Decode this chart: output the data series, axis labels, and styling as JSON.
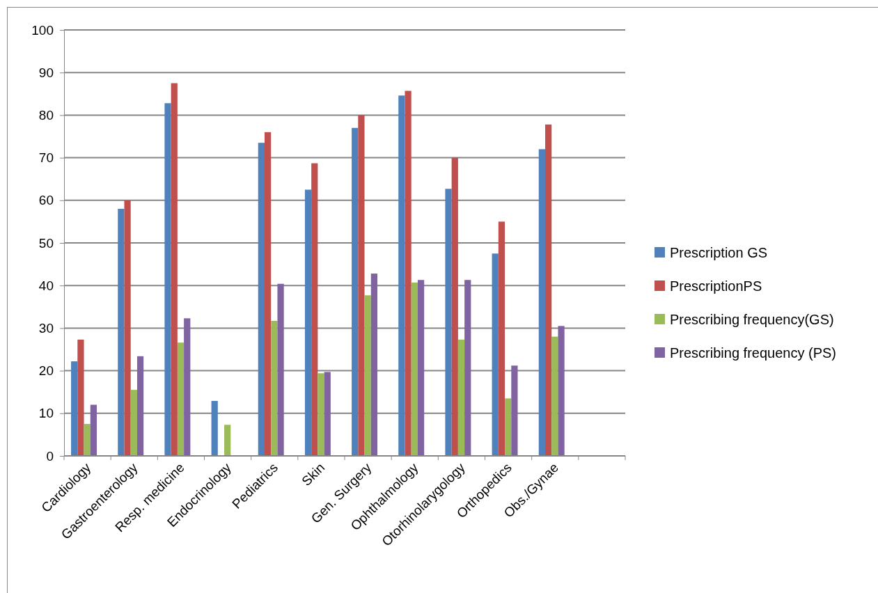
{
  "chart_data": {
    "type": "bar",
    "categories": [
      "Cardiology",
      "Gastroenterology",
      "Resp. medicine",
      "Endocrinology",
      "Pediatrics",
      "Skin",
      "Gen. Surgery",
      "Ophthalmology",
      "Otorhinolarygology",
      "Orthopedics",
      "Obs./Gynae",
      null
    ],
    "series": [
      {
        "name": "Prescription GS",
        "color": "#4f81bd",
        "values": [
          22.2,
          58,
          82.8,
          12.9,
          73.5,
          62.5,
          77,
          84.6,
          62.7,
          47.5,
          72,
          null
        ]
      },
      {
        "name": "PrescriptionPS",
        "color": "#c0504d",
        "values": [
          27.3,
          60,
          87.5,
          null,
          76,
          68.7,
          80,
          85.7,
          70,
          55,
          77.8,
          null
        ]
      },
      {
        "name": "Prescribing frequency(GS)",
        "color": "#9bbb59",
        "values": [
          7.5,
          15.5,
          26.6,
          7.3,
          31.7,
          19.4,
          37.7,
          40.7,
          27.3,
          13.5,
          28,
          null
        ]
      },
      {
        "name": "Prescribing frequency (PS)",
        "color": "#8064a2",
        "values": [
          12,
          23.4,
          32.3,
          null,
          40.4,
          19.7,
          42.8,
          41.3,
          41.3,
          21.2,
          30.5,
          null
        ]
      }
    ],
    "ylim": [
      0,
      100
    ],
    "yticks": [
      0,
      10,
      20,
      30,
      40,
      50,
      60,
      70,
      80,
      90,
      100
    ],
    "grid": "y",
    "legend": "right"
  }
}
